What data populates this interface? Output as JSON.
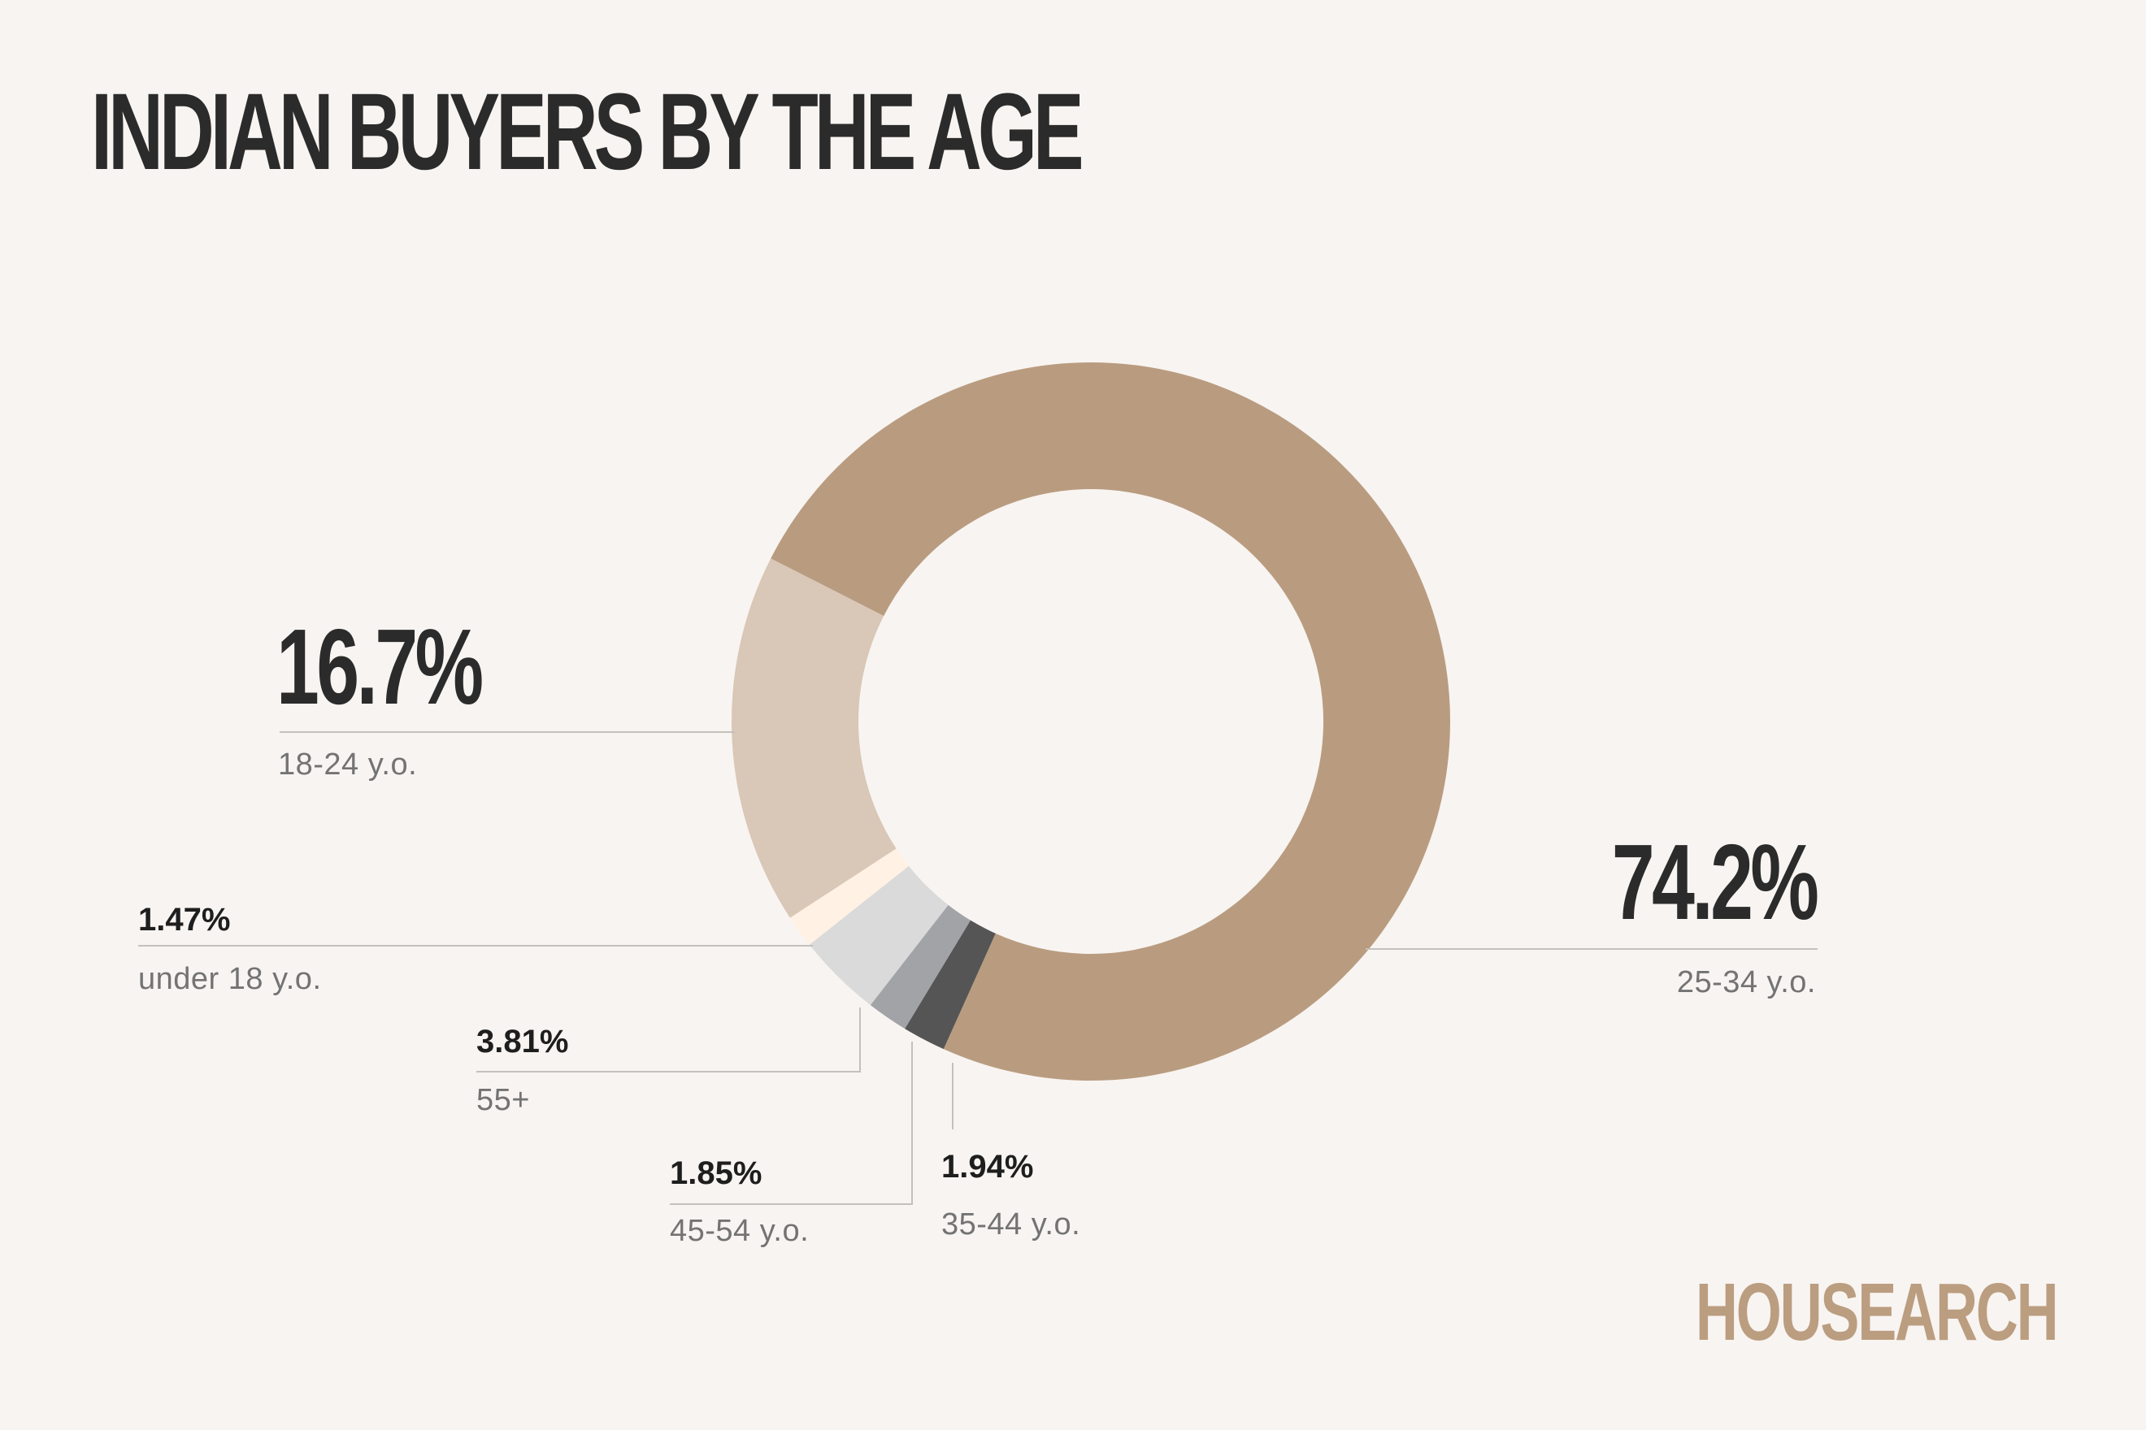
{
  "title": "INDIAN BUYERS BY THE AGE",
  "brand": {
    "name": "HOUSEARCH",
    "color": "#bb9d80"
  },
  "chart_data": {
    "type": "pie",
    "title": "INDIAN BUYERS BY THE AGE",
    "donut": true,
    "slices": [
      {
        "label": "25-34 y.o.",
        "pct_label": "74.2%",
        "value": 74.2,
        "color": "#b99c80"
      },
      {
        "label": "35-44 y.o.",
        "pct_label": "1.94%",
        "value": 1.94,
        "color": "#555555"
      },
      {
        "label": "45-54 y.o.",
        "pct_label": "1.85%",
        "value": 1.85,
        "color": "#a2a3a7"
      },
      {
        "label": "55+",
        "pct_label": "3.81%",
        "value": 3.81,
        "color": "#dadada"
      },
      {
        "label": "under 18 y.o.",
        "pct_label": "1.47%",
        "value": 1.47,
        "color": "#fff1e4"
      },
      {
        "label": "18-24 y.o.",
        "pct_label": "16.7%",
        "value": 16.7,
        "color": "#d9c7b7"
      }
    ]
  }
}
